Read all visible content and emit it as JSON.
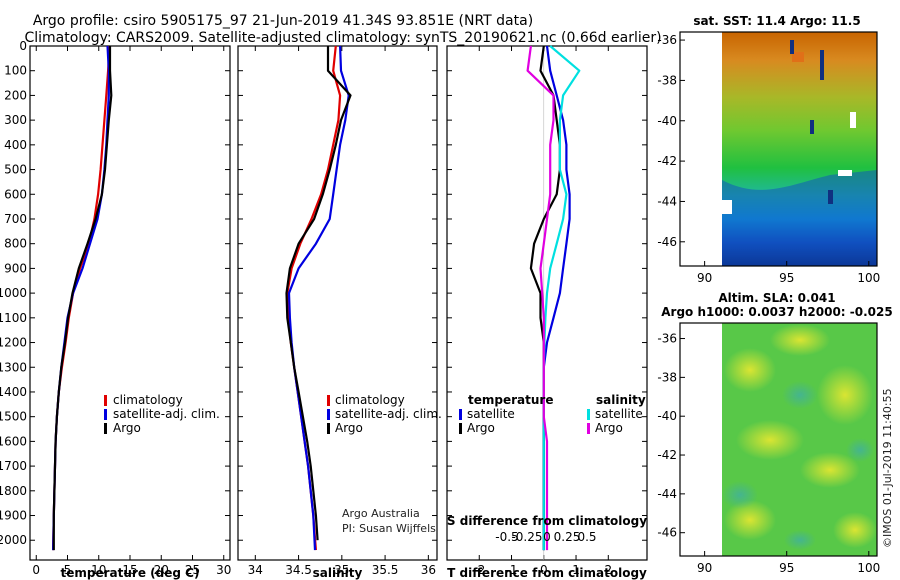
{
  "header": {
    "title_line1": "Argo profile: csiro 5905175_97 21-Jun-2019 41.34S 93.851E (NRT data)",
    "title_line2": "Climatology: CARS2009. Satellite-adjusted climatology: synTS_20190621.nc (0.66d earlier)"
  },
  "colors": {
    "climatology": "#e00000",
    "satellite": "#0000e0",
    "argo": "#000000",
    "s_sat": "#00e0e0",
    "s_argo": "#e000e0"
  },
  "depth_axis": {
    "ylim": [
      0,
      2080
    ],
    "ticks": [
      0,
      100,
      200,
      300,
      400,
      500,
      600,
      700,
      800,
      900,
      1000,
      1100,
      1200,
      1300,
      1400,
      1500,
      1600,
      1700,
      1800,
      1900,
      2000
    ]
  },
  "chart_data": [
    {
      "type": "line",
      "id": "temperature",
      "xlabel": "temperature (deg C)",
      "xlim": [
        -1,
        31
      ],
      "xticks": [
        0,
        5,
        10,
        15,
        20,
        25,
        30
      ],
      "legend": [
        "climatology",
        "satellite-adj. clim.",
        "Argo"
      ],
      "series": [
        {
          "name": "climatology",
          "color": "#e00000",
          "x": [
            11.7,
            11.5,
            11.2,
            10.9,
            10.6,
            10.3,
            9.9,
            9.3,
            8.4,
            7.0,
            5.9,
            5.2,
            4.7,
            4.1,
            3.6,
            3.3,
            3.1,
            3.0,
            2.9,
            2.8,
            2.7
          ],
          "depth": [
            0,
            100,
            200,
            300,
            400,
            500,
            600,
            700,
            800,
            900,
            1000,
            1100,
            1200,
            1300,
            1400,
            1500,
            1600,
            1700,
            1800,
            1900,
            2040
          ]
        },
        {
          "name": "satellite-adj. clim.",
          "color": "#0000e0",
          "x": [
            11.4,
            11.6,
            11.6,
            11.4,
            11.2,
            10.9,
            10.5,
            9.8,
            8.6,
            7.4,
            5.9,
            5.0,
            4.5,
            4.0,
            3.6,
            3.3,
            3.1,
            3.0,
            2.9,
            2.8,
            2.7
          ],
          "depth": [
            0,
            100,
            200,
            300,
            400,
            500,
            600,
            700,
            800,
            900,
            1000,
            1100,
            1200,
            1300,
            1400,
            1500,
            1600,
            1700,
            1800,
            1900,
            2040
          ]
        },
        {
          "name": "Argo",
          "color": "#000000",
          "x": [
            11.8,
            11.8,
            12.0,
            11.6,
            11.3,
            11.0,
            10.5,
            9.5,
            8.2,
            6.8,
            5.8,
            5.1,
            4.6,
            4.0,
            3.6,
            3.3,
            3.1,
            3.0,
            2.9,
            2.8,
            2.8
          ],
          "depth": [
            0,
            100,
            200,
            300,
            400,
            500,
            600,
            700,
            800,
            900,
            1000,
            1100,
            1200,
            1300,
            1400,
            1500,
            1600,
            1700,
            1800,
            1900,
            2040
          ]
        }
      ]
    },
    {
      "type": "line",
      "id": "salinity",
      "xlabel": "salinity",
      "xlim": [
        33.8,
        36.1
      ],
      "xticks": [
        34,
        34.5,
        35,
        35.5,
        36
      ],
      "xtick_labels": [
        "34",
        "34.5",
        "35",
        "35.5",
        "36"
      ],
      "legend": [
        "climatology",
        "satellite-adj. clim.",
        "Argo"
      ],
      "annotation": [
        "Argo Australia",
        "PI: Susan Wijffels"
      ],
      "series": [
        {
          "name": "climatology",
          "color": "#e00000",
          "x": [
            34.93,
            34.9,
            34.98,
            34.96,
            34.9,
            34.84,
            34.76,
            34.65,
            34.52,
            34.42,
            34.37,
            34.38,
            34.41,
            34.45,
            34.49,
            34.53,
            34.57,
            34.61,
            34.64,
            34.67,
            34.7
          ],
          "depth": [
            0,
            100,
            200,
            300,
            400,
            500,
            600,
            700,
            800,
            900,
            1000,
            1100,
            1200,
            1300,
            1400,
            1500,
            1600,
            1700,
            1800,
            1900,
            2040
          ]
        },
        {
          "name": "satellite-adj. clim.",
          "color": "#0000e0",
          "x": [
            34.98,
            34.99,
            35.08,
            35.04,
            34.98,
            34.94,
            34.9,
            34.86,
            34.7,
            34.5,
            34.39,
            34.4,
            34.42,
            34.45,
            34.49,
            34.53,
            34.57,
            34.61,
            34.64,
            34.67,
            34.69
          ],
          "depth": [
            0,
            100,
            200,
            300,
            400,
            500,
            600,
            700,
            800,
            900,
            1000,
            1100,
            1200,
            1300,
            1400,
            1500,
            1600,
            1700,
            1800,
            1900,
            2040
          ]
        },
        {
          "name": "Argo",
          "color": "#000000",
          "x": [
            34.84,
            34.84,
            35.1,
            34.99,
            34.93,
            34.86,
            34.78,
            34.68,
            34.5,
            34.4,
            34.36,
            34.37,
            34.41,
            34.45,
            34.5,
            34.55,
            34.6,
            34.64,
            34.67,
            34.7,
            34.72
          ],
          "depth": [
            0,
            100,
            200,
            300,
            400,
            500,
            600,
            700,
            800,
            900,
            1000,
            1100,
            1200,
            1300,
            1400,
            1500,
            1600,
            1700,
            1800,
            1900,
            2000
          ]
        }
      ]
    },
    {
      "type": "line",
      "id": "difference",
      "xlabel": "T difference from climatology",
      "xlabel_top": "S difference from climatology",
      "xlim": [
        -3,
        3.2
      ],
      "xticks": [
        -2,
        -1,
        0,
        1,
        2
      ],
      "s_ticks": [
        -0.5,
        -0.25,
        0,
        0.25,
        0.5
      ],
      "s_tick_labels": [
        "-0.5",
        "-0.25",
        "0",
        "0.25",
        "0.5"
      ],
      "legend_left_title": "temperature",
      "legend_right_title": "salinity",
      "legend_left": [
        "satellite",
        "Argo"
      ],
      "legend_right": [
        "satellite",
        "Argo"
      ],
      "series": [
        {
          "name": "T satellite",
          "color": "#0000e0",
          "x": [
            0.1,
            0.2,
            0.4,
            0.6,
            0.7,
            0.7,
            0.8,
            0.8,
            0.7,
            0.6,
            0.5,
            0.3,
            0.1,
            0,
            0,
            0,
            0,
            0,
            0,
            0,
            0
          ],
          "depth": [
            0,
            100,
            200,
            300,
            400,
            500,
            600,
            700,
            800,
            900,
            1000,
            1100,
            1200,
            1300,
            1400,
            1500,
            1600,
            1700,
            1800,
            1900,
            2040
          ]
        },
        {
          "name": "T Argo",
          "color": "#000000",
          "x": [
            0,
            -0.1,
            0.3,
            0.4,
            0.5,
            0.5,
            0.4,
            0.0,
            -0.3,
            -0.4,
            -0.1,
            -0.1,
            0.0,
            0.0,
            0.0,
            0.0,
            0.0,
            0.0,
            0.0,
            0.0,
            0.0
          ],
          "depth": [
            0,
            100,
            200,
            300,
            400,
            500,
            600,
            700,
            800,
            900,
            1000,
            1100,
            1200,
            1300,
            1400,
            1500,
            1600,
            1700,
            1800,
            1900,
            2040
          ]
        },
        {
          "name": "S satellite",
          "color": "#00e0e0",
          "x": [
            0.2,
            1.1,
            0.6,
            0.5,
            0.5,
            0.5,
            0.7,
            0.6,
            0.4,
            0.2,
            0.1,
            0.05,
            0.02,
            0.0,
            0.0,
            0.0,
            0.0,
            0.0,
            0.0,
            0.0,
            0.0
          ],
          "depth": [
            0,
            100,
            200,
            300,
            400,
            500,
            600,
            700,
            800,
            900,
            1000,
            1100,
            1200,
            1300,
            1400,
            1500,
            1600,
            1700,
            1800,
            1900,
            2040
          ]
        },
        {
          "name": "S Argo",
          "color": "#e000e0",
          "x": [
            -0.4,
            -0.5,
            0.3,
            0.3,
            0.2,
            0.2,
            0.2,
            0.1,
            0.0,
            -0.1,
            -0.05,
            0.0,
            0.0,
            0.0,
            0.0,
            0.0,
            0.1,
            0.1,
            0.1,
            0.1,
            0.1
          ],
          "depth": [
            0,
            100,
            200,
            300,
            400,
            500,
            600,
            700,
            800,
            900,
            1000,
            1100,
            1200,
            1300,
            1400,
            1500,
            1600,
            1700,
            1800,
            1900,
            2040
          ]
        }
      ]
    },
    {
      "type": "heatmap",
      "id": "sst_map",
      "title": "sat. SST: 11.4 Argo: 11.5",
      "xlim": [
        88.5,
        100.5
      ],
      "ylim": [
        -47.2,
        -35.6
      ],
      "xticks": [
        90,
        95,
        100
      ],
      "yticks": [
        -36,
        -38,
        -40,
        -42,
        -44,
        -46
      ]
    },
    {
      "type": "heatmap",
      "id": "sla_map",
      "title_line1": "Altim. SLA: 0.041",
      "title_line2": "Argo h1000: 0.0037 h2000: -0.025",
      "xlim": [
        88.5,
        100.5
      ],
      "ylim": [
        -47.2,
        -35.2
      ],
      "xticks": [
        90,
        95,
        100
      ],
      "yticks": [
        -36,
        -38,
        -40,
        -42,
        -44,
        -46
      ]
    }
  ],
  "footer": {
    "credit": "©IMOS 01-Jul-2019 11:40:55"
  }
}
